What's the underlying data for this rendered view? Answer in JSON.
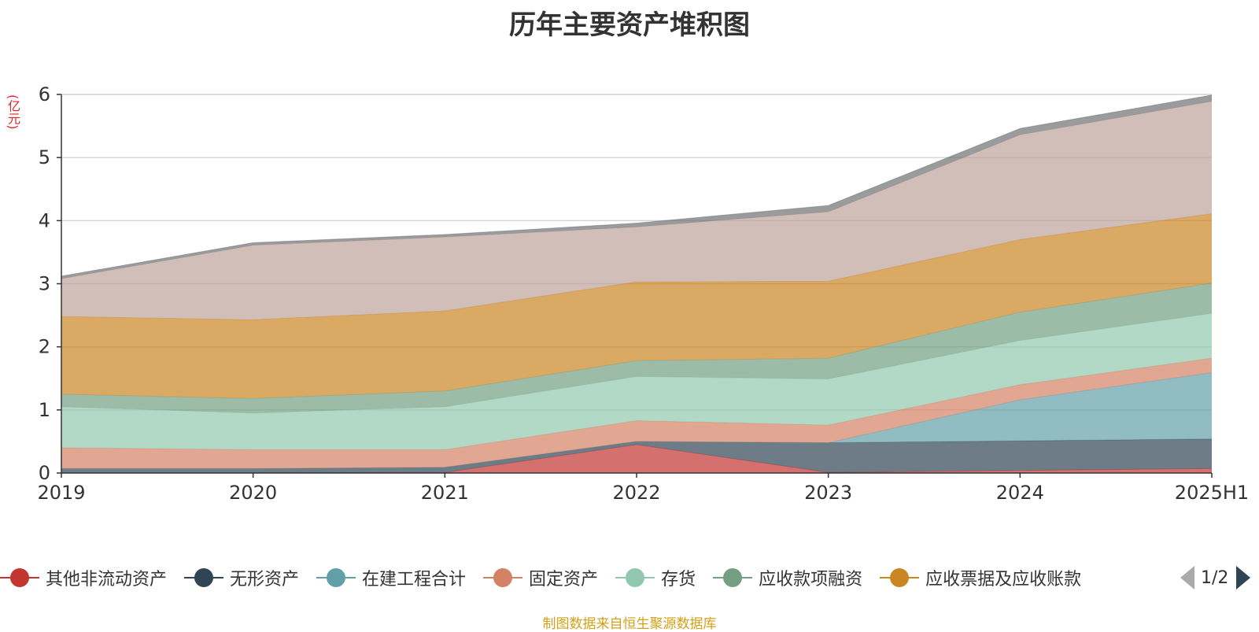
{
  "title": "历年主要资产堆积图",
  "unit": "(亿元)",
  "source": "制图数据来自恒生聚源数据库",
  "legend_page": "1/2",
  "chart_data": {
    "type": "area",
    "stacked": true,
    "title": "历年主要资产堆积图",
    "ylabel": "(亿元)",
    "ylim": [
      0,
      6
    ],
    "yticks": [
      0,
      1,
      2,
      3,
      4,
      5,
      6
    ],
    "grid": true,
    "legend_position": "bottom",
    "categories": [
      "2019",
      "2020",
      "2021",
      "2022",
      "2023",
      "2024",
      "2025H1"
    ],
    "series": [
      {
        "name": "其他非流动资产",
        "color": "#c23531",
        "values": [
          0.0,
          0.0,
          0.01,
          0.45,
          0.01,
          0.04,
          0.07
        ]
      },
      {
        "name": "无形资产",
        "color": "#2f4554",
        "values": [
          0.07,
          0.07,
          0.08,
          0.05,
          0.47,
          0.47,
          0.47
        ]
      },
      {
        "name": "在建工程合计",
        "color": "#61a0a8",
        "values": [
          0.0,
          0.0,
          0.0,
          0.0,
          0.0,
          0.65,
          1.05
        ]
      },
      {
        "name": "固定资产",
        "color": "#d48265",
        "values": [
          0.33,
          0.3,
          0.28,
          0.33,
          0.28,
          0.24,
          0.23
        ]
      },
      {
        "name": "存货",
        "color": "#91c7ae",
        "values": [
          0.65,
          0.58,
          0.68,
          0.7,
          0.73,
          0.7,
          0.71
        ]
      },
      {
        "name": "应收款项融资",
        "color": "#749f83",
        "values": [
          0.2,
          0.23,
          0.25,
          0.25,
          0.33,
          0.45,
          0.48
        ]
      },
      {
        "name": "应收票据及应收账款",
        "color": "#ca8622",
        "values": [
          1.23,
          1.25,
          1.27,
          1.25,
          1.22,
          1.15,
          1.1
        ]
      },
      {
        "color": "#bda29a",
        "values": [
          0.6,
          1.18,
          1.17,
          0.87,
          1.1,
          1.66,
          1.78
        ]
      },
      {
        "color": "#6e7074",
        "values": [
          0.04,
          0.04,
          0.04,
          0.06,
          0.1,
          0.1,
          0.1
        ]
      }
    ]
  }
}
